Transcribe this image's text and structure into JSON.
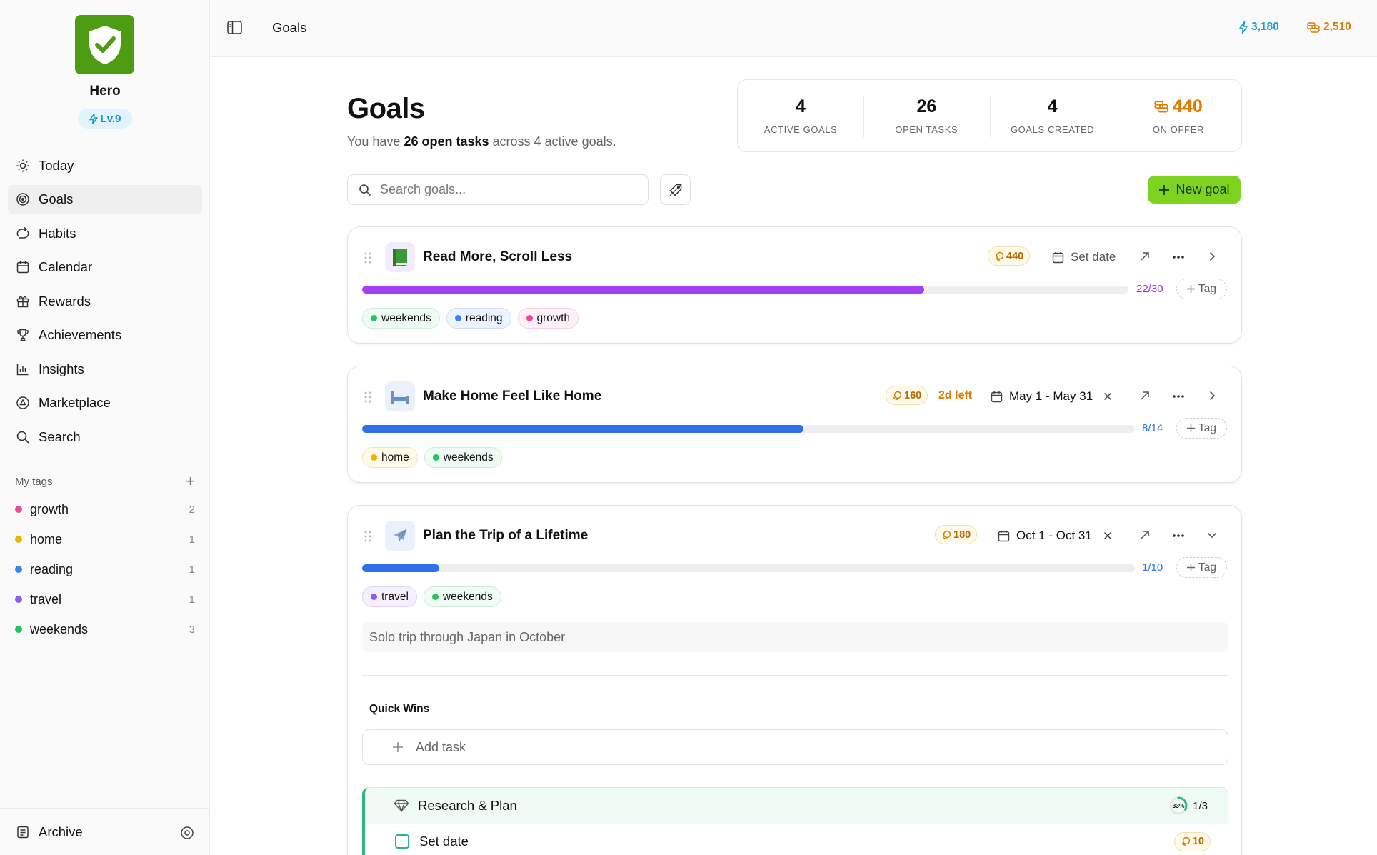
{
  "app": {
    "user_name": "Hero",
    "level": "Lv.9"
  },
  "header": {
    "title": "Goals",
    "energy": "3,180",
    "coins": "2,510"
  },
  "sidebar": {
    "nav": [
      {
        "label": "Today",
        "icon": "sun-icon"
      },
      {
        "label": "Goals",
        "icon": "target-icon",
        "active": true
      },
      {
        "label": "Habits",
        "icon": "loop-icon"
      },
      {
        "label": "Calendar",
        "icon": "calendar-icon"
      },
      {
        "label": "Rewards",
        "icon": "gift-icon"
      },
      {
        "label": "Achievements",
        "icon": "trophy-icon"
      },
      {
        "label": "Insights",
        "icon": "bar-chart-icon"
      },
      {
        "label": "Marketplace",
        "icon": "marketplace-icon"
      },
      {
        "label": "Search",
        "icon": "search-icon"
      }
    ],
    "tags_heading": "My tags",
    "tags": [
      {
        "name": "growth",
        "count": "2",
        "color": "#ec4899"
      },
      {
        "name": "home",
        "count": "1",
        "color": "#eab308"
      },
      {
        "name": "reading",
        "count": "1",
        "color": "#3b82f6"
      },
      {
        "name": "travel",
        "count": "1",
        "color": "#8b5cf6"
      },
      {
        "name": "weekends",
        "count": "3",
        "color": "#22c55e"
      }
    ],
    "archive_label": "Archive"
  },
  "page": {
    "title": "Goals",
    "subtitle_prefix": "You have",
    "subtitle_bold": "26 open tasks",
    "subtitle_suffix": "across 4 active goals."
  },
  "stats": [
    {
      "value": "4",
      "label": "ACTIVE GOALS"
    },
    {
      "value": "26",
      "label": "OPEN TASKS"
    },
    {
      "value": "4",
      "label": "GOALS CREATED"
    },
    {
      "value": "440",
      "label": "ON OFFER"
    }
  ],
  "toolbar": {
    "search_placeholder": "Search goals...",
    "new_goal_label": "New goal"
  },
  "goals": [
    {
      "title": "Read More, Scroll Less",
      "emoji": "📗",
      "reward": "440",
      "date": "Set date",
      "progress_text": "22/30",
      "progress": 0.733,
      "bar_color": "#a23ff0",
      "count_color": "#9b30e8",
      "tags": [
        {
          "name": "weekends",
          "color": "#22c55e",
          "bg": "#effbf3",
          "border": "#cdeed8"
        },
        {
          "name": "reading",
          "color": "#3b82f6",
          "bg": "#eef4ff",
          "border": "#cfdefa"
        },
        {
          "name": "growth",
          "color": "#ec4899",
          "bg": "#fdf0f6",
          "border": "#f7d3e5"
        }
      ]
    },
    {
      "title": "Make Home Feel Like Home",
      "emoji": "🛏️",
      "reward": "160",
      "days_left": "2d left",
      "date": "May 1 - May 31",
      "progress_text": "8/14",
      "progress": 0.571,
      "bar_color": "#2f6fe8",
      "count_color": "#2f6fe8",
      "tags": [
        {
          "name": "home",
          "color": "#eab308",
          "bg": "#fff9e8",
          "border": "#f3e5b6"
        },
        {
          "name": "weekends",
          "color": "#22c55e",
          "bg": "#effbf3",
          "border": "#cdeed8"
        }
      ]
    },
    {
      "title": "Plan the Trip of a Lifetime",
      "emoji": "✈️",
      "reward": "180",
      "date": "Oct 1 - Oct 31",
      "progress_text": "1/10",
      "progress": 0.1,
      "bar_color": "#2f6fe8",
      "count_color": "#2f6fe8",
      "tags": [
        {
          "name": "travel",
          "color": "#8b5cf6",
          "bg": "#f5f0ff",
          "border": "#e0d4fb"
        },
        {
          "name": "weekends",
          "color": "#22c55e",
          "bg": "#effbf3",
          "border": "#cdeed8"
        }
      ],
      "description": "Solo trip through Japan in October",
      "section_title": "Quick Wins",
      "add_task_label": "Add task",
      "milestone": {
        "title": "Research & Plan",
        "percent": "33%",
        "percent_value": 0.33,
        "count": "1/3"
      },
      "task": {
        "title": "Set date",
        "reward": "10"
      }
    }
  ],
  "tag_button_label": "Tag"
}
